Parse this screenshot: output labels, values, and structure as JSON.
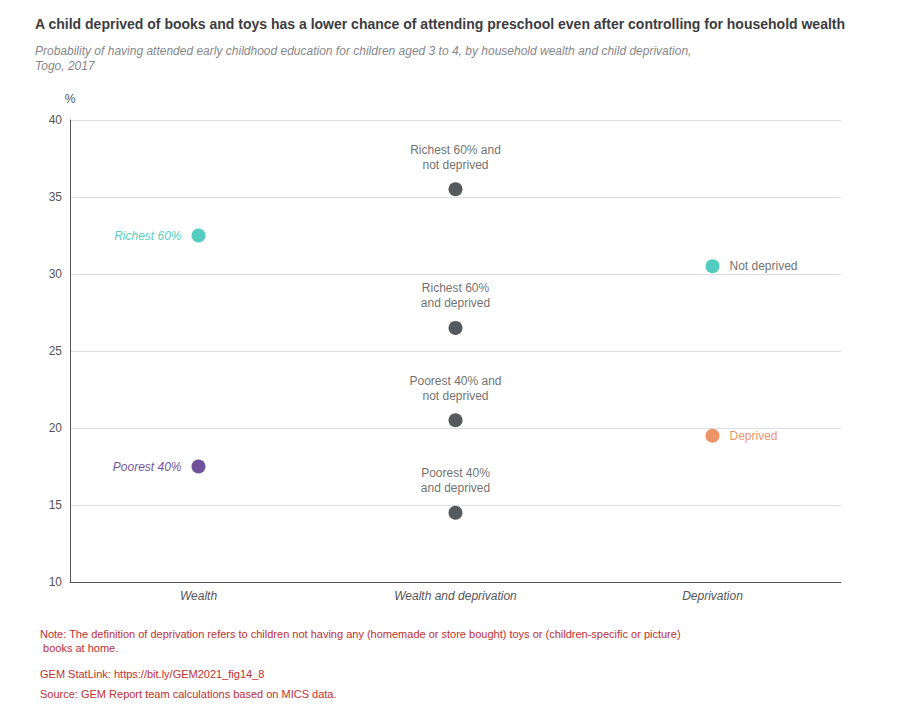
{
  "chart_data": {
    "type": "scatter",
    "title": "A child deprived of books and toys has a lower chance of attending preschool even after controlling for household wealth",
    "subtitle": "Probability of having attended early childhood education for children aged 3 to 4, by household wealth and child deprivation, Togo, 2017",
    "ylabel": "%",
    "categories": [
      "Wealth",
      "Wealth and deprivation",
      "Deprivation"
    ],
    "ylim": [
      10,
      40
    ],
    "yticks": [
      10,
      15,
      20,
      25,
      30,
      35,
      40
    ],
    "grid": true,
    "points": [
      {
        "category": "Wealth",
        "value": 32.5,
        "color": "#2abfb0",
        "label": "Richest 60%",
        "label_color": "#2abfb0"
      },
      {
        "category": "Wealth",
        "value": 17.5,
        "color": "#4a2580",
        "label": "Poorest 40%",
        "label_color": "#4a2580"
      },
      {
        "category": "Wealth and deprivation",
        "value": 35.5,
        "color": "#2d3135",
        "label": "Richest 60% and\nnot deprived",
        "label_color": "#4a4a4a"
      },
      {
        "category": "Wealth and deprivation",
        "value": 26.5,
        "color": "#2d3135",
        "label": "Richest 60%\nand deprived",
        "label_color": "#4a4a4a"
      },
      {
        "category": "Wealth and deprivation",
        "value": 20.5,
        "color": "#2d3135",
        "label": "Poorest 40% and\nnot deprived",
        "label_color": "#4a4a4a"
      },
      {
        "category": "Wealth and deprivation",
        "value": 14.5,
        "color": "#2d3135",
        "label": "Poorest 40%\nand deprived",
        "label_color": "#4a4a4a"
      },
      {
        "category": "Deprivation",
        "value": 30.5,
        "color": "#2abfb0",
        "label": "Not deprived",
        "label_color": "#4a4a4a"
      },
      {
        "category": "Deprivation",
        "value": 19.5,
        "color": "#e87840",
        "label": "Deprived",
        "label_color": "#e87840"
      }
    ],
    "notes": [
      "Note: The definition of deprivation refers to children not having any (homemade or store bought) toys or (children-specific or picture) books at home.",
      "GEM StatLink: https://bit.ly/GEM2021_fig14_8",
      "Source: GEM Report team calculations based on MICS data."
    ],
    "notes_color": "#c03030"
  }
}
